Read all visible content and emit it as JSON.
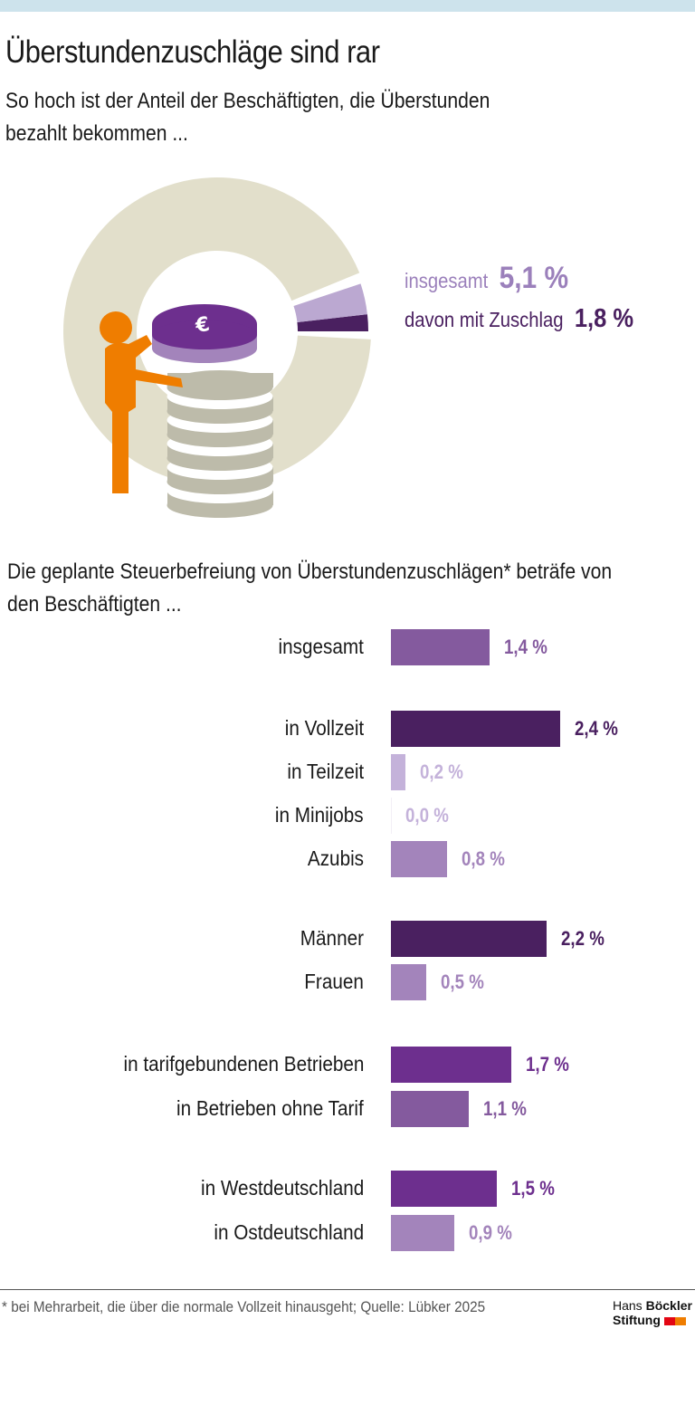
{
  "header": {
    "title": "Überstundenzuschläge sind rar",
    "subtitle": "So hoch ist der Anteil der Beschäftigten, die Überstunden bezahlt bekommen ..."
  },
  "colors": {
    "beige": "#e2dfcb",
    "light_purple": "#bba8d1",
    "dark_purple": "#4a2060",
    "orange": "#ef7d00",
    "coin_grey": "#bdbbaa"
  },
  "chart_data": [
    {
      "type": "pie",
      "segments": [
        {
          "label": "insgesamt",
          "value": 5.1,
          "display": "5,1 %",
          "color": "#bba8d1"
        },
        {
          "label": "davon mit Zuschlag",
          "value": 1.8,
          "display": "1,8 %",
          "color": "#4a2060"
        }
      ],
      "unit": "%"
    },
    {
      "type": "bar",
      "orientation": "horizontal",
      "title": "Die geplante Steuerbefreiung von Überstundenzuschlägen* beträfe von den Beschäftigten ...",
      "categories": [
        "insgesamt",
        "in Vollzeit",
        "in Teilzeit",
        "in Minijobs",
        "Azubis",
        "Männer",
        "Frauen",
        "in tarifgebundenen Betrieben",
        "in Betrieben ohne Tarif",
        "in Westdeutschland",
        "in Ostdeutschland"
      ],
      "values": [
        1.4,
        2.4,
        0.2,
        0.0,
        0.8,
        2.2,
        0.5,
        1.7,
        1.1,
        1.5,
        0.9
      ],
      "labels": [
        "1,4 %",
        "2,4 %",
        "0,2 %",
        "0,0 %",
        "0,8 %",
        "2,2 %",
        "0,5 %",
        "1,7 %",
        "1,1 %",
        "1,5 %",
        "0,9 %"
      ],
      "colors": [
        "#845a9e",
        "#4a2060",
        "#c4b2da",
        "#c4b2da",
        "#a384bb",
        "#4a2060",
        "#a384bb",
        "#6d2f8e",
        "#845a9e",
        "#6d2f8e",
        "#a384bb"
      ],
      "unit": "%"
    }
  ],
  "footer": {
    "note": "* bei Mehrarbeit, die über die normale Vollzeit hinausgeht; Quelle: Lübker 2025",
    "logo_line1_a": "Hans",
    "logo_line1_b": "Böckler",
    "logo_line2": "Stiftung"
  }
}
